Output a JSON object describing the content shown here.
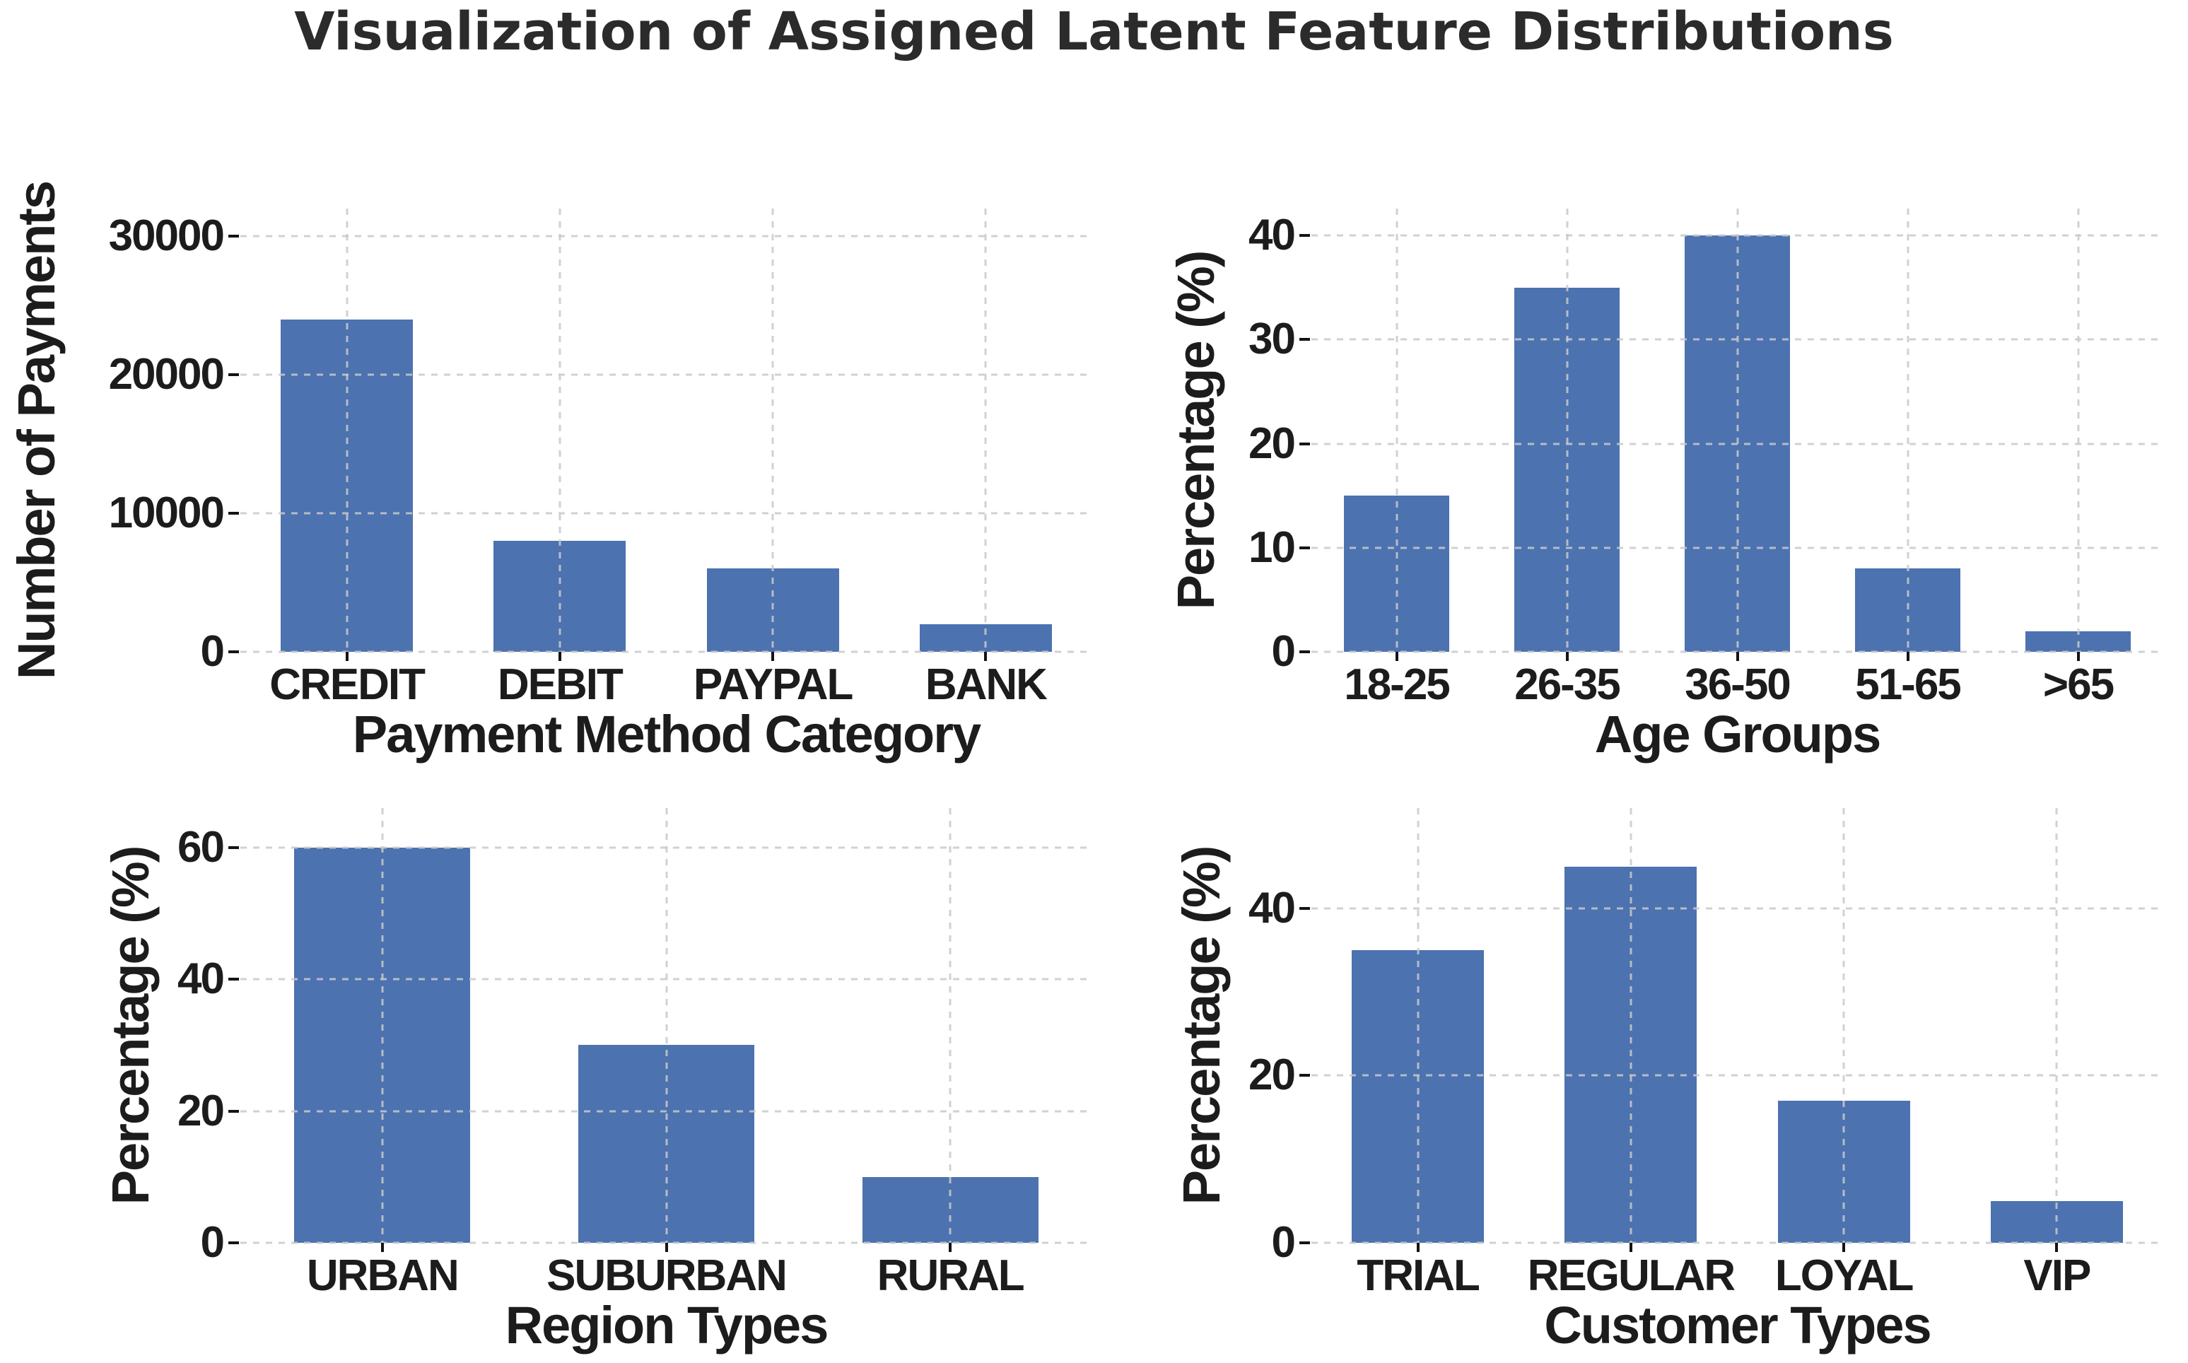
{
  "title": "Visualization of Assigned Latent Feature Distributions",
  "colors": {
    "bar": "#4C72B0",
    "grid": "#c9c9c9",
    "text": "#1c1c1c",
    "title_text": "#2b2b2b",
    "background": "#ffffff"
  },
  "chart_data": [
    {
      "type": "bar",
      "title": "",
      "xlabel": "Payment Method Category",
      "ylabel": "Number of Payments",
      "categories": [
        "CREDIT",
        "DEBIT",
        "PAYPAL",
        "BANK"
      ],
      "values": [
        24000,
        8000,
        6000,
        2000
      ],
      "yticks": [
        0,
        10000,
        20000,
        30000
      ],
      "ylim": [
        0,
        32000
      ],
      "grid": "dashed, horizontal and vertical, drawn over bars",
      "legend_position": "none"
    },
    {
      "type": "bar",
      "title": "",
      "xlabel": "Age Groups",
      "ylabel": "Percentage (%)",
      "categories": [
        "18-25",
        "26-35",
        "36-50",
        "51-65",
        ">65"
      ],
      "values": [
        15,
        35,
        40,
        8,
        2
      ],
      "yticks": [
        0,
        10,
        20,
        30,
        40
      ],
      "ylim": [
        0,
        42.6
      ],
      "grid": "dashed, horizontal and vertical, drawn over bars",
      "legend_position": "none"
    },
    {
      "type": "bar",
      "title": "",
      "xlabel": "Region Types",
      "ylabel": "Percentage (%)",
      "categories": [
        "URBAN",
        "SUBURBAN",
        "RURAL"
      ],
      "values": [
        60,
        30,
        10
      ],
      "yticks": [
        0,
        20,
        40,
        60
      ],
      "ylim": [
        0,
        66
      ],
      "grid": "dashed, horizontal and vertical, drawn over bars",
      "legend_position": "none"
    },
    {
      "type": "bar",
      "title": "",
      "xlabel": "Customer Types",
      "ylabel": "Percentage (%)",
      "categories": [
        "TRIAL",
        "REGULAR",
        "LOYAL",
        "VIP"
      ],
      "values": [
        35,
        45,
        17,
        5
      ],
      "yticks": [
        0,
        20,
        40
      ],
      "ylim": [
        0,
        52
      ],
      "grid": "dashed, horizontal and vertical, drawn over bars",
      "legend_position": "none"
    }
  ]
}
